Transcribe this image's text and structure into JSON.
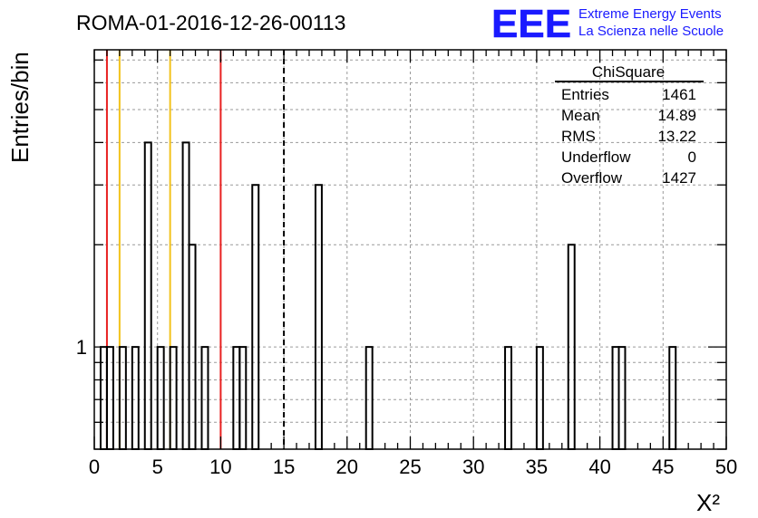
{
  "header": {
    "title": "ROMA-01-2016-12-26-00113",
    "logo_text": "EEE",
    "logo_line1": "Extreme Energy Events",
    "logo_line2": "La Scienza nelle Scuole",
    "logo_color": "#1a1aff"
  },
  "stats_box": {
    "title": "ChiSquare",
    "rows": [
      {
        "label": "Entries",
        "value": "1461"
      },
      {
        "label": "Mean",
        "value": "14.89"
      },
      {
        "label": "RMS",
        "value": "13.22"
      },
      {
        "label": "Underflow",
        "value": "0"
      },
      {
        "label": "Overflow",
        "value": "1427"
      }
    ]
  },
  "chart_data": {
    "type": "bar",
    "histogram": true,
    "bin_width": 0.5,
    "xlim": [
      0,
      50
    ],
    "y_scale": "log",
    "ylim": [
      0.5,
      7.5
    ],
    "ylabel": "Entries/bin",
    "xlabel": "X²",
    "x_ticks": [
      0,
      5,
      10,
      15,
      20,
      25,
      30,
      35,
      40,
      45,
      50
    ],
    "x_tick_labels": [
      "0",
      "5",
      "10",
      "15",
      "20",
      "25",
      "30",
      "35",
      "40",
      "45",
      "50"
    ],
    "y_tick_labels": [
      {
        "value": 1,
        "label": "1"
      }
    ],
    "grid": true,
    "bins": [
      {
        "x": 0.5,
        "y": 1
      },
      {
        "x": 1.0,
        "y": 1
      },
      {
        "x": 2.0,
        "y": 1
      },
      {
        "x": 3.0,
        "y": 1
      },
      {
        "x": 4.0,
        "y": 4
      },
      {
        "x": 5.0,
        "y": 1
      },
      {
        "x": 6.0,
        "y": 1
      },
      {
        "x": 7.0,
        "y": 4
      },
      {
        "x": 7.5,
        "y": 2
      },
      {
        "x": 8.5,
        "y": 1
      },
      {
        "x": 11.0,
        "y": 1
      },
      {
        "x": 11.5,
        "y": 1
      },
      {
        "x": 12.5,
        "y": 3
      },
      {
        "x": 17.5,
        "y": 3
      },
      {
        "x": 21.5,
        "y": 1
      },
      {
        "x": 32.5,
        "y": 1
      },
      {
        "x": 35.0,
        "y": 1
      },
      {
        "x": 37.5,
        "y": 2
      },
      {
        "x": 41.0,
        "y": 1
      },
      {
        "x": 41.5,
        "y": 1
      },
      {
        "x": 45.5,
        "y": 1
      }
    ],
    "vertical_lines": [
      {
        "x": 1.0,
        "color": "#e82020",
        "style": "solid"
      },
      {
        "x": 2.0,
        "color": "#f2c21b",
        "style": "solid"
      },
      {
        "x": 6.0,
        "color": "#f2c21b",
        "style": "solid"
      },
      {
        "x": 10.0,
        "color": "#e82020",
        "style": "solid"
      },
      {
        "x": 15.0,
        "color": "#000000",
        "style": "dashed"
      }
    ]
  }
}
